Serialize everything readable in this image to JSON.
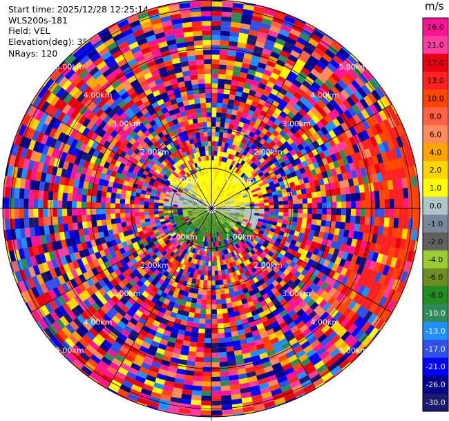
{
  "header": {
    "start_time": "Start time: 2025/12/28 12:25:14",
    "instrument": "WLS200s-181",
    "field": "Field: VEL",
    "elevation": "Elevation(deg): 35.00",
    "nrays": "NRays: 120"
  },
  "chart_data": {
    "type": "heatmap",
    "projection": "polar-ppi",
    "n_rays": 120,
    "range_rings_km": [
      1,
      2,
      3,
      4,
      5
    ],
    "range_ring_labels": [
      "1.00km",
      "2.00km",
      "3.00km",
      "4.00km",
      "5.00km"
    ],
    "ring_label_bearings_deg": [
      45,
      135,
      225,
      315
    ],
    "colorbar": {
      "unit": "m/s",
      "ticks": [
        "26.0",
        "21.0",
        "17.0",
        "13.0",
        "10.0",
        "8.0",
        "6.0",
        "4.0",
        "2.0",
        "1.0",
        "0.0",
        "-1.0",
        "-2.0",
        "-4.0",
        "-6.0",
        "-8.0",
        "-10.0",
        "-13.0",
        "-17.0",
        "-21.0",
        "-26.0",
        "-30.0"
      ],
      "colors": [
        "#ff1493",
        "#ff3ea0",
        "#e8000f",
        "#ff2020",
        "#ff4500",
        "#ff6347",
        "#ff8c5a",
        "#ffa500",
        "#ffd700",
        "#ffff00",
        "#b0c4c8",
        "#778899",
        "#606060",
        "#9acd32",
        "#6b8e23",
        "#228b22",
        "#2e8b57",
        "#1e90ff",
        "#3050e8",
        "#0000ff",
        "#00008b",
        "#191970"
      ]
    }
  }
}
